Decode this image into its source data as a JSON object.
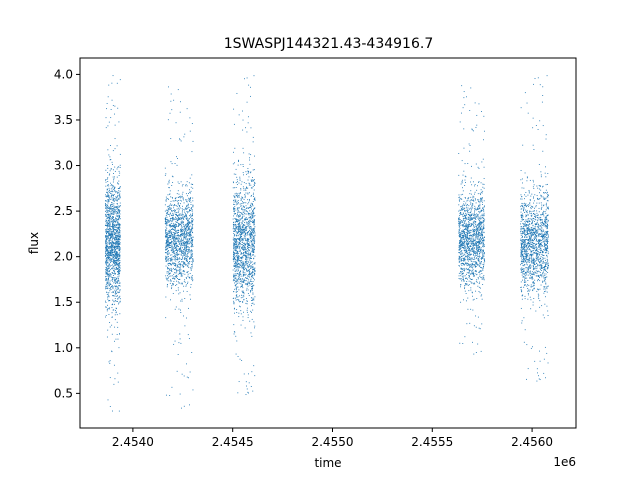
{
  "chart_data": {
    "type": "scatter",
    "title": "1SWASPJ144321.43-434916.7",
    "xlabel": "time",
    "ylabel": "flux",
    "x_offset_label": "1e6",
    "xlim": [
      2453735,
      2456220
    ],
    "ylim": [
      0.12,
      4.18
    ],
    "x_ticks": [
      2454000,
      2454500,
      2455000,
      2455500,
      2456000
    ],
    "x_tick_labels": [
      "2.4540",
      "2.4545",
      "2.4550",
      "2.4555",
      "2.4560"
    ],
    "y_ticks": [
      0.5,
      1.0,
      1.5,
      2.0,
      2.5,
      3.0,
      3.5,
      4.0
    ],
    "y_tick_labels": [
      "0.5",
      "1.0",
      "1.5",
      "2.0",
      "2.5",
      "3.0",
      "3.5",
      "4.0"
    ],
    "grid": false,
    "marker_color": "#1f77b4",
    "seasons": [
      {
        "x_range": [
          2453860,
          2453935
        ],
        "y_center": 2.15,
        "y_spread": 0.35,
        "y_range": [
          0.3,
          4.0
        ],
        "density": 1.0
      },
      {
        "x_range": [
          2454160,
          2454300
        ],
        "y_center": 2.2,
        "y_spread": 0.25,
        "y_range": [
          0.3,
          3.95
        ],
        "density": 1.0
      },
      {
        "x_range": [
          2454500,
          2454610
        ],
        "y_center": 2.15,
        "y_spread": 0.35,
        "y_range": [
          0.45,
          4.0
        ],
        "density": 1.0
      },
      {
        "x_range": [
          2455630,
          2455760
        ],
        "y_center": 2.2,
        "y_spread": 0.25,
        "y_range": [
          0.9,
          3.95
        ],
        "density": 1.0
      },
      {
        "x_range": [
          2455940,
          2456080
        ],
        "y_center": 2.15,
        "y_spread": 0.28,
        "y_range": [
          0.6,
          4.0
        ],
        "density": 1.0
      }
    ]
  }
}
